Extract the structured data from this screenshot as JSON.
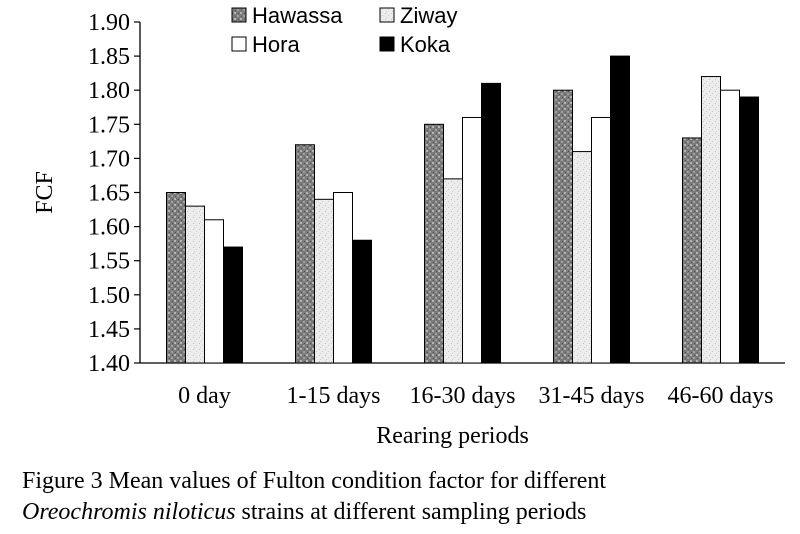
{
  "chart_data": {
    "type": "bar",
    "title": "",
    "xlabel": "Rearing periods",
    "ylabel": "FCF",
    "ylim": [
      1.4,
      1.9
    ],
    "ytick_step": 0.05,
    "yticks": [
      "1.40",
      "1.45",
      "1.50",
      "1.55",
      "1.60",
      "1.65",
      "1.70",
      "1.75",
      "1.80",
      "1.85",
      "1.90"
    ],
    "categories": [
      "0 day",
      "1-15 days",
      "16-30 days",
      "31-45 days",
      "46-60 days"
    ],
    "series": [
      {
        "name": "Hawassa",
        "values": [
          1.65,
          1.72,
          1.75,
          1.8,
          1.73
        ],
        "pattern": "dark-speckle",
        "color": "#8c8c8c"
      },
      {
        "name": "Ziway",
        "values": [
          1.63,
          1.64,
          1.67,
          1.71,
          1.82
        ],
        "pattern": "light-speckle",
        "color": "#e6e6e6"
      },
      {
        "name": "Hora",
        "values": [
          1.61,
          1.65,
          1.76,
          1.76,
          1.8
        ],
        "pattern": "white",
        "color": "#ffffff"
      },
      {
        "name": "Koka",
        "values": [
          1.57,
          1.58,
          1.81,
          1.85,
          1.79
        ],
        "pattern": "solid-black",
        "color": "#000000"
      }
    ],
    "legend_position": "top-left, inside plot, 2 columns",
    "grid": false
  },
  "caption": {
    "line1": "Figure 3 Mean values of Fulton condition factor for different",
    "species": "Oreochromis niloticus",
    "line2_rest": " strains at different sampling periods"
  }
}
